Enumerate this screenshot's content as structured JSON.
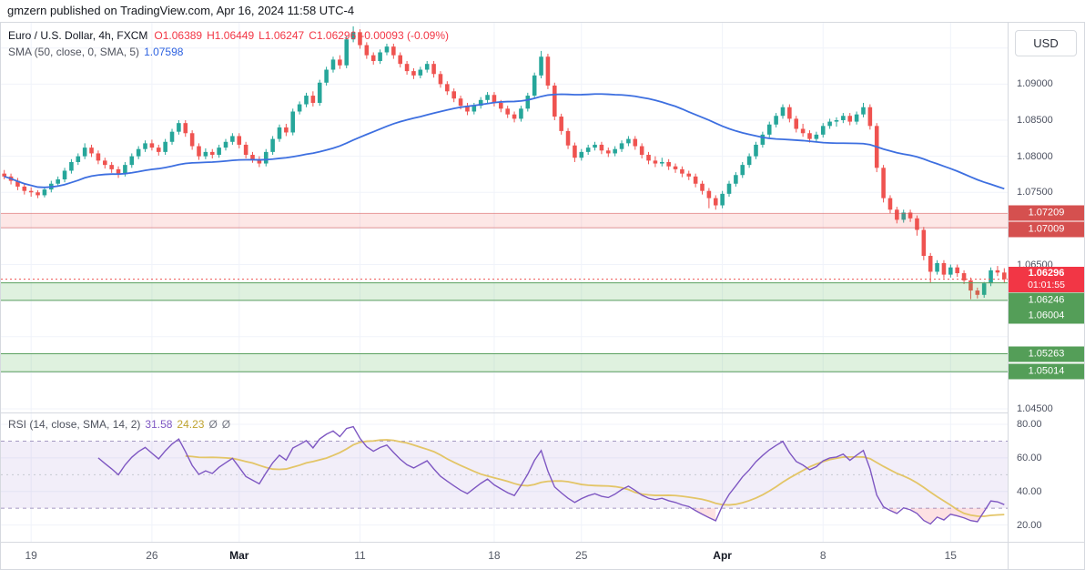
{
  "header": {
    "attribution": "gmzern published on TradingView.com, Apr 16, 2024 11:58 UTC-4"
  },
  "price_axis": {
    "currency_button": "USD"
  },
  "legend": {
    "main": {
      "title": "Euro / U.S. Dollar, 4h, FXCM",
      "open": "O1.06389",
      "high": "H1.06449",
      "low": "L1.06247",
      "close": "C1.06296",
      "change": "-0.00093 (-0.09%)"
    },
    "sma": {
      "label": "SMA (50, close, 0, SMA, 5)",
      "value": "1.07598"
    },
    "rsi": {
      "label": "RSI (14, close, SMA, 14, 2)",
      "value": "31.58",
      "ma_value": "24.23",
      "upper": "Ø",
      "lower": "Ø"
    }
  },
  "chart_data": [
    {
      "type": "candlestick",
      "title": "Euro / U.S. Dollar, 4h, FXCM",
      "symbol": "EUR/USD",
      "timeframe": "4h",
      "exchange": "FXCM",
      "y_min": 1.0445,
      "y_max": 1.0985,
      "up_color": "#26a69a",
      "down_color": "#ef5350",
      "sma_color": "#3d6fe0",
      "sma_period": 50,
      "grid_prices": [
        1.095,
        1.09,
        1.085,
        1.08,
        1.075,
        1.07,
        1.065,
        1.06,
        1.055,
        1.05,
        1.045
      ],
      "price_ticks": [
        {
          "price": 1.09,
          "label": "1.09000"
        },
        {
          "price": 1.085,
          "label": "1.08500"
        },
        {
          "price": 1.08,
          "label": "1.08000"
        },
        {
          "price": 1.075,
          "label": "1.07500"
        },
        {
          "price": 1.065,
          "label": "1.06500"
        },
        {
          "price": 1.045,
          "label": "1.04500"
        }
      ],
      "time_ticks": [
        {
          "label": "19",
          "index": 4,
          "month": false
        },
        {
          "label": "26",
          "index": 22,
          "month": false
        },
        {
          "label": "Mar",
          "index": 35,
          "month": true
        },
        {
          "label": "11",
          "index": 53,
          "month": false
        },
        {
          "label": "18",
          "index": 73,
          "month": false
        },
        {
          "label": "25",
          "index": 86,
          "month": false
        },
        {
          "label": "Apr",
          "index": 107,
          "month": true
        },
        {
          "label": "8",
          "index": 122,
          "month": false
        },
        {
          "label": "15",
          "index": 141,
          "month": false
        }
      ],
      "zones": [
        {
          "kind": "resistance",
          "top": 1.07209,
          "bottom": 1.07009,
          "top_label": "1.07209",
          "bottom_label": "1.07009",
          "fill": "rgba(239,83,80,0.14)",
          "border": "rgba(211,82,80,0.55)",
          "label_bg": "#d5504f"
        },
        {
          "kind": "support",
          "top": 1.06246,
          "bottom": 1.06004,
          "top_label": "1.06246",
          "bottom_label": "1.06004",
          "fill": "rgba(76,175,80,0.18)",
          "border": "#5aa05f",
          "label_bg": "#549e58"
        },
        {
          "kind": "support",
          "top": 1.05263,
          "bottom": 1.05014,
          "top_label": "1.05263",
          "bottom_label": "1.05014",
          "fill": "rgba(76,175,80,0.18)",
          "border": "#5aa05f",
          "label_bg": "#549e58"
        }
      ],
      "last_price": {
        "value": 1.06296,
        "label": "1.06296",
        "countdown": "01:01:55"
      },
      "candles": [
        [
          1.0776,
          1.0781,
          1.0768,
          1.0772
        ],
        [
          1.0772,
          1.0776,
          1.0761,
          1.0766
        ],
        [
          1.0766,
          1.077,
          1.0753,
          1.0758
        ],
        [
          1.0758,
          1.0762,
          1.0747,
          1.0752
        ],
        [
          1.0752,
          1.0757,
          1.0744,
          1.075
        ],
        [
          1.075,
          1.0753,
          1.0742,
          1.0746
        ],
        [
          1.0746,
          1.0758,
          1.0743,
          1.0754
        ],
        [
          1.0754,
          1.0766,
          1.075,
          1.0762
        ],
        [
          1.0762,
          1.0772,
          1.0758,
          1.0768
        ],
        [
          1.0768,
          1.0784,
          1.0764,
          1.078
        ],
        [
          1.078,
          1.0796,
          1.0776,
          1.0792
        ],
        [
          1.0792,
          1.0804,
          1.0788,
          1.08
        ],
        [
          1.08,
          1.0818,
          1.0796,
          1.0812
        ],
        [
          1.0812,
          1.0816,
          1.0799,
          1.0804
        ],
        [
          1.0804,
          1.0808,
          1.0789,
          1.0794
        ],
        [
          1.0794,
          1.0798,
          1.0783,
          1.0788
        ],
        [
          1.0788,
          1.0792,
          1.0777,
          1.0782
        ],
        [
          1.0782,
          1.0786,
          1.077,
          1.0775
        ],
        [
          1.0775,
          1.0792,
          1.0772,
          1.0788
        ],
        [
          1.0788,
          1.0804,
          1.0784,
          1.08
        ],
        [
          1.08,
          1.0814,
          1.0796,
          1.081
        ],
        [
          1.081,
          1.0822,
          1.0806,
          1.0818
        ],
        [
          1.0818,
          1.0823,
          1.0808,
          1.0812
        ],
        [
          1.0812,
          1.0816,
          1.0801,
          1.0806
        ],
        [
          1.0806,
          1.0824,
          1.0802,
          1.082
        ],
        [
          1.082,
          1.0838,
          1.0816,
          1.0834
        ],
        [
          1.0834,
          1.085,
          1.083,
          1.0846
        ],
        [
          1.0846,
          1.085,
          1.0827,
          1.0832
        ],
        [
          1.0832,
          1.0836,
          1.0809,
          1.0814
        ],
        [
          1.0814,
          1.0818,
          1.0795,
          1.08
        ],
        [
          1.08,
          1.0811,
          1.0796,
          1.0806
        ],
        [
          1.0806,
          1.081,
          1.0797,
          1.0802
        ],
        [
          1.0802,
          1.0816,
          1.0798,
          1.0812
        ],
        [
          1.0812,
          1.0824,
          1.0808,
          1.082
        ],
        [
          1.082,
          1.0832,
          1.0816,
          1.0828
        ],
        [
          1.0828,
          1.0832,
          1.0811,
          1.0816
        ],
        [
          1.0816,
          1.082,
          1.0797,
          1.0802
        ],
        [
          1.0802,
          1.0806,
          1.0791,
          1.0796
        ],
        [
          1.0796,
          1.08,
          1.0785,
          1.079
        ],
        [
          1.079,
          1.081,
          1.0786,
          1.0806
        ],
        [
          1.0806,
          1.0828,
          1.0802,
          1.0824
        ],
        [
          1.0824,
          1.0844,
          1.082,
          1.084
        ],
        [
          1.084,
          1.0845,
          1.0828,
          1.0833
        ],
        [
          1.0833,
          1.0866,
          1.0829,
          1.0862
        ],
        [
          1.0862,
          1.0876,
          1.0858,
          1.0872
        ],
        [
          1.0872,
          1.0888,
          1.0868,
          1.0884
        ],
        [
          1.0884,
          1.089,
          1.0869,
          1.0874
        ],
        [
          1.0874,
          1.0906,
          1.087,
          1.0902
        ],
        [
          1.0902,
          1.0924,
          1.0898,
          1.092
        ],
        [
          1.092,
          1.0938,
          1.0916,
          1.0934
        ],
        [
          1.0934,
          1.094,
          1.0921,
          1.0926
        ],
        [
          1.0926,
          1.0966,
          1.0922,
          1.0962
        ],
        [
          1.0962,
          1.098,
          1.0958,
          1.0972
        ],
        [
          1.0972,
          1.0976,
          1.0949,
          1.0954
        ],
        [
          1.0954,
          1.0958,
          1.0935,
          1.094
        ],
        [
          1.094,
          1.0944,
          1.0927,
          1.0932
        ],
        [
          1.0932,
          1.0948,
          1.0928,
          1.0944
        ],
        [
          1.0944,
          1.0956,
          1.094,
          1.0952
        ],
        [
          1.0952,
          1.0956,
          1.0935,
          1.094
        ],
        [
          1.094,
          1.0944,
          1.0923,
          1.0928
        ],
        [
          1.0928,
          1.0932,
          1.0913,
          1.0918
        ],
        [
          1.0918,
          1.0922,
          1.0907,
          1.0912
        ],
        [
          1.0912,
          1.0924,
          1.0908,
          1.092
        ],
        [
          1.092,
          1.0932,
          1.0916,
          1.0928
        ],
        [
          1.0928,
          1.0932,
          1.0909,
          1.0914
        ],
        [
          1.0914,
          1.0918,
          1.0895,
          1.09
        ],
        [
          1.09,
          1.0904,
          1.0885,
          1.089
        ],
        [
          1.089,
          1.0894,
          1.0875,
          1.088
        ],
        [
          1.088,
          1.0884,
          1.0865,
          1.087
        ],
        [
          1.087,
          1.0874,
          1.0857,
          1.0862
        ],
        [
          1.0862,
          1.0874,
          1.0858,
          1.087
        ],
        [
          1.087,
          1.0882,
          1.0866,
          1.0878
        ],
        [
          1.0878,
          1.0889,
          1.0874,
          1.0885
        ],
        [
          1.0885,
          1.0889,
          1.0869,
          1.0874
        ],
        [
          1.0874,
          1.0878,
          1.0861,
          1.0866
        ],
        [
          1.0866,
          1.087,
          1.0853,
          1.0858
        ],
        [
          1.0858,
          1.0862,
          1.0847,
          1.0852
        ],
        [
          1.0852,
          1.087,
          1.0848,
          1.0866
        ],
        [
          1.0866,
          1.0888,
          1.0862,
          1.0884
        ],
        [
          1.0884,
          1.0916,
          1.088,
          1.0912
        ],
        [
          1.0912,
          1.0946,
          1.0908,
          1.0938
        ],
        [
          1.0938,
          1.0942,
          1.0893,
          1.0898
        ],
        [
          1.0898,
          1.0902,
          1.085,
          1.0855
        ],
        [
          1.0855,
          1.0859,
          1.083,
          1.0835
        ],
        [
          1.0835,
          1.0839,
          1.081,
          1.0815
        ],
        [
          1.0815,
          1.0819,
          1.0792,
          1.0798
        ],
        [
          1.0798,
          1.081,
          1.0794,
          1.0806
        ],
        [
          1.0806,
          1.0816,
          1.0802,
          1.0812
        ],
        [
          1.0812,
          1.082,
          1.0808,
          1.0816
        ],
        [
          1.0816,
          1.082,
          1.0803,
          1.0808
        ],
        [
          1.0808,
          1.0812,
          1.0799,
          1.0804
        ],
        [
          1.0804,
          1.0814,
          1.08,
          1.081
        ],
        [
          1.081,
          1.0822,
          1.0806,
          1.0818
        ],
        [
          1.0818,
          1.0828,
          1.0814,
          1.0824
        ],
        [
          1.0824,
          1.0828,
          1.0809,
          1.0814
        ],
        [
          1.0814,
          1.0818,
          1.0797,
          1.0802
        ],
        [
          1.0802,
          1.0806,
          1.0789,
          1.0794
        ],
        [
          1.0794,
          1.08,
          1.0785,
          1.079
        ],
        [
          1.079,
          1.0798,
          1.0786,
          1.0792
        ],
        [
          1.0792,
          1.0796,
          1.0781,
          1.0786
        ],
        [
          1.0786,
          1.079,
          1.0777,
          1.0782
        ],
        [
          1.0782,
          1.0786,
          1.0771,
          1.0776
        ],
        [
          1.0776,
          1.078,
          1.0767,
          1.0772
        ],
        [
          1.0772,
          1.0776,
          1.0757,
          1.0762
        ],
        [
          1.0762,
          1.0766,
          1.0747,
          1.0752
        ],
        [
          1.0752,
          1.0756,
          1.0728,
          1.0742
        ],
        [
          1.0742,
          1.0746,
          1.0726,
          1.0732
        ],
        [
          1.0732,
          1.0752,
          1.0728,
          1.0748
        ],
        [
          1.0748,
          1.0766,
          1.0744,
          1.0762
        ],
        [
          1.0762,
          1.0778,
          1.0758,
          1.0774
        ],
        [
          1.0774,
          1.0792,
          1.077,
          1.0788
        ],
        [
          1.0788,
          1.0804,
          1.0784,
          1.08
        ],
        [
          1.08,
          1.082,
          1.0796,
          1.0816
        ],
        [
          1.0816,
          1.0834,
          1.0812,
          1.083
        ],
        [
          1.083,
          1.0848,
          1.0826,
          1.0844
        ],
        [
          1.0844,
          1.086,
          1.084,
          1.0856
        ],
        [
          1.0856,
          1.0872,
          1.0852,
          1.0868
        ],
        [
          1.0868,
          1.0872,
          1.0847,
          1.0852
        ],
        [
          1.0852,
          1.0856,
          1.0833,
          1.0838
        ],
        [
          1.0838,
          1.0845,
          1.0827,
          1.0832
        ],
        [
          1.0832,
          1.0836,
          1.0819,
          1.0824
        ],
        [
          1.0824,
          1.0834,
          1.082,
          1.083
        ],
        [
          1.083,
          1.0846,
          1.0826,
          1.0842
        ],
        [
          1.0842,
          1.0852,
          1.0838,
          1.0848
        ],
        [
          1.0848,
          1.0854,
          1.0841,
          1.085
        ],
        [
          1.085,
          1.086,
          1.0846,
          1.0856
        ],
        [
          1.0856,
          1.086,
          1.0843,
          1.0848
        ],
        [
          1.0848,
          1.0862,
          1.0844,
          1.0858
        ],
        [
          1.0858,
          1.0874,
          1.0854,
          1.0868
        ],
        [
          1.0868,
          1.0872,
          1.0837,
          1.0842
        ],
        [
          1.0842,
          1.0846,
          1.0778,
          1.0784
        ],
        [
          1.0784,
          1.0788,
          1.0736,
          1.0742
        ],
        [
          1.0742,
          1.0746,
          1.0721,
          1.0726
        ],
        [
          1.0726,
          1.073,
          1.0707,
          1.0712
        ],
        [
          1.0712,
          1.0726,
          1.0708,
          1.0722
        ],
        [
          1.0722,
          1.0726,
          1.0709,
          1.0714
        ],
        [
          1.0714,
          1.0718,
          1.069,
          1.0698
        ],
        [
          1.0698,
          1.0702,
          1.0656,
          1.0662
        ],
        [
          1.0662,
          1.0666,
          1.0625,
          1.064
        ],
        [
          1.064,
          1.0656,
          1.0636,
          1.0652
        ],
        [
          1.0652,
          1.0656,
          1.0631,
          1.0636
        ],
        [
          1.0636,
          1.065,
          1.0632,
          1.0646
        ],
        [
          1.0646,
          1.065,
          1.0633,
          1.0638
        ],
        [
          1.0638,
          1.0642,
          1.0623,
          1.0628
        ],
        [
          1.0628,
          1.0632,
          1.0602,
          1.0614
        ],
        [
          1.0614,
          1.0618,
          1.0603,
          1.0608
        ],
        [
          1.0608,
          1.0626,
          1.0604,
          1.0624
        ],
        [
          1.0624,
          1.0646,
          1.062,
          1.0642
        ],
        [
          1.0642,
          1.0648,
          1.0634,
          1.06389
        ],
        [
          1.06389,
          1.06449,
          1.06247,
          1.06296
        ]
      ]
    },
    {
      "type": "line",
      "name": "RSI",
      "period": 14,
      "ma_period": 14,
      "y_min": 10,
      "y_max": 86,
      "line_color": "#7e57c2",
      "ma_color": "#e3c567",
      "band_fill": "rgba(126,87,194,0.10)",
      "band_line": "#a59ac2",
      "oversold_fill": "rgba(242,54,69,0.15)",
      "bands": {
        "upper": 70,
        "middle": 50,
        "lower": 30
      },
      "grid_values": [
        80,
        60,
        40,
        20
      ],
      "ticks": [
        {
          "value": 80,
          "label": "80.00"
        },
        {
          "value": 60,
          "label": "60.00"
        },
        {
          "value": 40,
          "label": "40.00"
        },
        {
          "value": 20,
          "label": "20.00"
        }
      ],
      "current": 31.58,
      "ma_current": 24.23
    }
  ]
}
